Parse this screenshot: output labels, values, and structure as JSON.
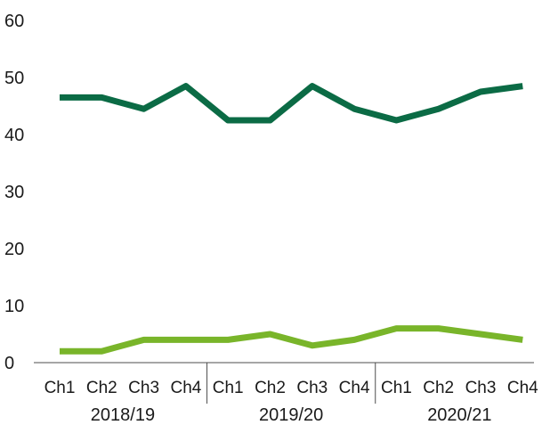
{
  "chart_data": {
    "type": "line",
    "categories": [
      "Ch1",
      "Ch2",
      "Ch3",
      "Ch4",
      "Ch1",
      "Ch2",
      "Ch3",
      "Ch4",
      "Ch1",
      "Ch2",
      "Ch3",
      "Ch4"
    ],
    "groups": [
      "2018/19",
      "2019/20",
      "2020/21"
    ],
    "ylim": [
      0,
      60
    ],
    "yticks": [
      0,
      10,
      20,
      30,
      40,
      50,
      60
    ],
    "grid": false,
    "legend": "none",
    "series": [
      {
        "color": "#0b6b45",
        "values": [
          46.5,
          46.5,
          44.5,
          48.5,
          42.5,
          42.5,
          48.5,
          44.5,
          42.5,
          44.5,
          47.5,
          48.5
        ]
      },
      {
        "color": "#79b52a",
        "values": [
          2,
          2,
          4,
          4,
          4,
          5,
          3,
          4,
          6,
          6,
          5,
          4
        ]
      }
    ]
  }
}
